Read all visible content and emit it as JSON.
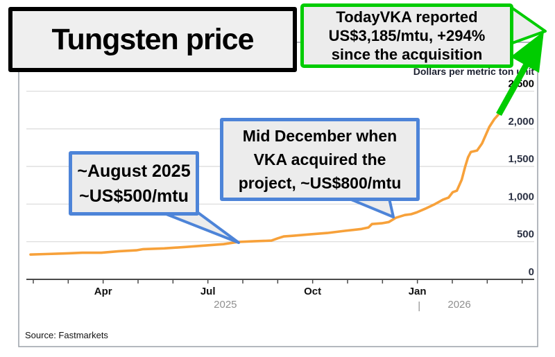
{
  "title_box": {
    "text": "Tungsten price"
  },
  "green_callout": {
    "lines": [
      "TodayVKA reported",
      "US$3,185/mtu, +294%",
      "since the acquisition"
    ]
  },
  "callout_august": {
    "lines": [
      "~August 2025",
      "~US$500/mtu"
    ]
  },
  "callout_december": {
    "lines": [
      "Mid December when",
      "VKA acquired the",
      "project, ~US$800/mtu"
    ]
  },
  "source": "Source: Fastmarkets",
  "colors": {
    "green": "#00cc00",
    "blue": "#4d84d8",
    "orange": "#f7a13a",
    "fill": "#ececec",
    "grid": "#dadada",
    "axis": "#4a4a4a",
    "frame": "#9aa0a8",
    "ytick_text": "#2a3042",
    "ytick_text_bold": "#000000",
    "xtick_text": "#111111",
    "year_text": "#8f8f8f",
    "unit_text": "#1c2130"
  },
  "chart_data": {
    "type": "line",
    "title": "Tungsten price",
    "ylabel": "Dollars per metric ton unit",
    "xlabel": "",
    "ylim": [
      0,
      2500
    ],
    "grid": "horizontal",
    "legend": "none",
    "yticks": [
      {
        "value": 2500,
        "label": "2,500",
        "bold": true
      },
      {
        "value": 2000,
        "label": "2,000"
      },
      {
        "value": 1500,
        "label": "1,500"
      },
      {
        "value": 1000,
        "label": "1,000"
      },
      {
        "value": 500,
        "label": "500"
      },
      {
        "value": 0,
        "label": "0"
      }
    ],
    "x_axis": {
      "unit": "months after 1 Feb 2025 (monthly ticks, Feb 2025 - Apr 2026)",
      "ticks": [
        {
          "m": 0
        },
        {
          "m": 1
        },
        {
          "m": 2,
          "label": "Apr"
        },
        {
          "m": 3
        },
        {
          "m": 4
        },
        {
          "m": 5,
          "label": "Jul"
        },
        {
          "m": 6
        },
        {
          "m": 7
        },
        {
          "m": 8,
          "label": "Oct"
        },
        {
          "m": 9
        },
        {
          "m": 10
        },
        {
          "m": 11,
          "label": "Jan"
        },
        {
          "m": 12
        },
        {
          "m": 13
        },
        {
          "m": 14
        }
      ],
      "year_labels": [
        {
          "m": 5.5,
          "label": "2025"
        },
        {
          "m": 12.2,
          "label": "2026"
        }
      ],
      "year_divider": {
        "m": 11.05,
        "label": "|"
      }
    },
    "series": [
      {
        "name": "Tungsten price (US$ per metric ton unit)",
        "points": [
          [
            -0.08,
            330
          ],
          [
            0.35,
            336
          ],
          [
            0.7,
            342
          ],
          [
            1.0,
            346
          ],
          [
            1.4,
            354
          ],
          [
            1.95,
            354
          ],
          [
            2.45,
            374
          ],
          [
            2.95,
            386
          ],
          [
            3.15,
            402
          ],
          [
            3.75,
            412
          ],
          [
            4.35,
            430
          ],
          [
            4.95,
            450
          ],
          [
            5.45,
            468
          ],
          [
            5.87,
            497
          ],
          [
            6.3,
            506
          ],
          [
            6.82,
            515
          ],
          [
            7.0,
            545
          ],
          [
            7.17,
            570
          ],
          [
            7.42,
            578
          ],
          [
            7.92,
            598
          ],
          [
            8.42,
            616
          ],
          [
            8.92,
            645
          ],
          [
            9.4,
            670
          ],
          [
            9.6,
            690
          ],
          [
            9.7,
            735
          ],
          [
            9.98,
            745
          ],
          [
            10.18,
            762
          ],
          [
            10.38,
            818
          ],
          [
            10.64,
            855
          ],
          [
            10.82,
            866
          ],
          [
            10.98,
            890
          ],
          [
            11.22,
            938
          ],
          [
            11.47,
            992
          ],
          [
            11.73,
            1058
          ],
          [
            11.89,
            1086
          ],
          [
            12.01,
            1158
          ],
          [
            12.13,
            1178
          ],
          [
            12.27,
            1325
          ],
          [
            12.37,
            1500
          ],
          [
            12.45,
            1620
          ],
          [
            12.53,
            1693
          ],
          [
            12.71,
            1712
          ],
          [
            12.85,
            1805
          ],
          [
            13.06,
            2025
          ],
          [
            13.2,
            2127
          ],
          [
            13.36,
            2210
          ]
        ]
      }
    ],
    "annotations": [
      {
        "text": "~August 2025 ~US$500/mtu",
        "value_usd_mtu": 500
      },
      {
        "text": "Mid December when VKA acquired the project, ~US$800/mtu",
        "value_usd_mtu": 800
      },
      {
        "text": "TodayVKA reported US$3,185/mtu, +294% since the acquisition",
        "value_usd_mtu": 3185,
        "change_pct": "+294%"
      }
    ]
  }
}
